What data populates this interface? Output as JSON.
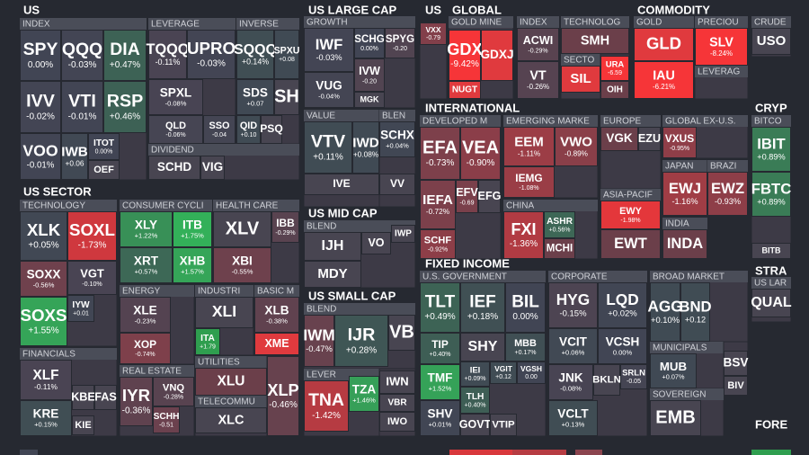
{
  "sections": [
    {
      "title": "US",
      "groups": [
        {
          "title": "INDEX",
          "cells": [
            {
              "label": "SPY",
              "change": "0.00%"
            },
            {
              "label": "QQQ",
              "change": "-0.03%"
            },
            {
              "label": "DIA",
              "change": "+0.47%"
            },
            {
              "label": "IVV",
              "change": "-0.02%"
            },
            {
              "label": "VTI",
              "change": "-0.01%"
            },
            {
              "label": "RSP",
              "change": "+0.46%"
            },
            {
              "label": "VOO",
              "change": "-0.01%"
            },
            {
              "label": "IWB",
              "change": "+0.06"
            },
            {
              "label": "ITOT",
              "change": "0.00%"
            },
            {
              "label": "OEF"
            }
          ]
        },
        {
          "title": "LEVERAGE",
          "cells": [
            {
              "label": "TQQQ",
              "change": "-0.11%"
            },
            {
              "label": "UPRO",
              "change": "-0.03%"
            },
            {
              "label": "SPXL",
              "change": "-0.08%"
            },
            {
              "label": "QLD",
              "change": "-0.06%"
            },
            {
              "label": "SSO",
              "change": "-0.04"
            }
          ]
        },
        {
          "title": "INVERSE",
          "cells": [
            {
              "label": "SQQQ",
              "change": "+0.14%"
            },
            {
              "label": "SPXU",
              "change": "+0.08"
            },
            {
              "label": "SDS",
              "change": "+0.07"
            },
            {
              "label": "SH"
            },
            {
              "label": "QID",
              "change": "+0.10"
            },
            {
              "label": "PSQ"
            }
          ]
        },
        {
          "title": "DIVIDEND",
          "cells": [
            {
              "label": "SCHD"
            },
            {
              "label": "VIG"
            }
          ]
        }
      ]
    },
    {
      "title": "US SECTOR",
      "groups": [
        {
          "title": "TECHNOLOGY",
          "cells": [
            {
              "label": "XLK",
              "change": "+0.05%"
            },
            {
              "label": "SOXL",
              "change": "-1.73%"
            },
            {
              "label": "SOXX",
              "change": "-0.56%"
            },
            {
              "label": "VGT",
              "change": "-0.10%"
            },
            {
              "label": "SOXS",
              "change": "+1.55%"
            },
            {
              "label": "IYW",
              "change": "+0.01"
            }
          ]
        },
        {
          "title": "FINANCIALS",
          "cells": [
            {
              "label": "XLF",
              "change": "-0.11%"
            },
            {
              "label": "KRE",
              "change": "+0.15%"
            },
            {
              "label": "KBE"
            },
            {
              "label": "FAS"
            },
            {
              "label": "KIE"
            }
          ]
        },
        {
          "title": "CONSUMER CYCLI",
          "cells": [
            {
              "label": "XLY",
              "change": "+1.22%"
            },
            {
              "label": "ITB",
              "change": "+1.75%"
            },
            {
              "label": "XRT",
              "change": "+0.57%"
            },
            {
              "label": "XHB",
              "change": "+1.57%"
            }
          ]
        },
        {
          "title": "HEALTH CARE",
          "cells": [
            {
              "label": "XLV"
            },
            {
              "label": "IBB",
              "change": "-0.29%"
            },
            {
              "label": "XBI",
              "change": "-0.55%"
            }
          ]
        },
        {
          "title": "ENERGY",
          "cells": [
            {
              "label": "XLE",
              "change": "-0.23%"
            },
            {
              "label": "XOP",
              "change": "-0.74%"
            }
          ]
        },
        {
          "title": "INDUSTRI",
          "cells": [
            {
              "label": "XLI"
            },
            {
              "label": "ITA",
              "change": "+1.79"
            }
          ]
        },
        {
          "title": "BASIC M",
          "cells": [
            {
              "label": "XLB",
              "change": "-0.38%"
            },
            {
              "label": "XME"
            }
          ]
        },
        {
          "title": "REAL ESTATE",
          "cells": [
            {
              "label": "IYR",
              "change": "-0.36%"
            },
            {
              "label": "VNQ",
              "change": "-0.28%"
            },
            {
              "label": "SCHH",
              "change": "-0.51"
            }
          ]
        },
        {
          "title": "UTILITIES",
          "cells": [
            {
              "label": "XLU"
            }
          ]
        },
        {
          "title": "TELECOMMU",
          "cells": [
            {
              "label": "XLC"
            }
          ]
        },
        {
          "cells": [
            {
              "label": "XLP",
              "change": "-0.46%"
            }
          ]
        }
      ]
    },
    {
      "title": "US LARGE CAP",
      "groups": [
        {
          "title": "GROWTH",
          "cells": [
            {
              "label": "IWF",
              "change": "-0.03%"
            },
            {
              "label": "SCHG",
              "change": "0.00%"
            },
            {
              "label": "SPYG",
              "change": "-0.20"
            },
            {
              "label": "VUG",
              "change": "-0.04%"
            },
            {
              "label": "IVW",
              "change": "-0.20"
            },
            {
              "label": "MGK"
            }
          ]
        },
        {
          "title": "VALUE",
          "cells": [
            {
              "label": "VTV",
              "change": "+0.11%"
            },
            {
              "label": "IWD",
              "change": "+0.08%"
            },
            {
              "label": "IVE"
            }
          ]
        },
        {
          "title": "BLEN",
          "cells": [
            {
              "label": "SCHX",
              "change": "+0.04%"
            },
            {
              "label": "VV"
            }
          ]
        }
      ]
    },
    {
      "title": "US MID CAP",
      "groups": [
        {
          "title": "BLEND",
          "cells": [
            {
              "label": "IJH"
            },
            {
              "label": "VO"
            },
            {
              "label": "IWP"
            },
            {
              "label": "MDY"
            }
          ]
        }
      ]
    },
    {
      "title": "US SMALL CAP",
      "groups": [
        {
          "title": "BLEND",
          "cells": [
            {
              "label": "IWM",
              "change": "-0.47%"
            },
            {
              "label": "IJR",
              "change": "+0.28%"
            },
            {
              "label": "VB"
            }
          ]
        },
        {
          "title": "LEVER",
          "cells": [
            {
              "label": "TNA",
              "change": "-1.42%"
            },
            {
              "label": "TZA",
              "change": "+1.46%"
            }
          ]
        },
        {
          "cells": [
            {
              "label": "IWN"
            },
            {
              "label": "VBR"
            },
            {
              "label": "IWO"
            }
          ]
        }
      ]
    },
    {
      "title": "US",
      "groups": [
        {
          "cells": [
            {
              "label": "VXX",
              "change": "-0.79"
            }
          ]
        }
      ]
    },
    {
      "title": "GLOBAL",
      "groups": [
        {
          "title": "GOLD MINE",
          "cells": [
            {
              "label": "GDX",
              "change": "-9.42%"
            },
            {
              "label": "GDXJ"
            },
            {
              "label": "NUGT"
            }
          ]
        },
        {
          "title": "INDEX",
          "cells": [
            {
              "label": "ACWI",
              "change": "-0.29%"
            },
            {
              "label": "VT",
              "change": "-0.26%"
            }
          ]
        },
        {
          "title": "TECHNOLOG",
          "cells": [
            {
              "label": "SMH"
            }
          ]
        },
        {
          "title": "SECTO",
          "cells": [
            {
              "label": "SIL"
            }
          ]
        },
        {
          "cells": [
            {
              "label": "URA",
              "change": "-6.59"
            },
            {
              "label": "OIH"
            }
          ]
        }
      ]
    },
    {
      "title": "COMMODITY",
      "groups": [
        {
          "title": "GOLD",
          "cells": [
            {
              "label": "GLD"
            },
            {
              "label": "IAU",
              "change": "-6.21%"
            }
          ]
        },
        {
          "title": "PRECIOU",
          "cells": [
            {
              "label": "SLV",
              "change": "-8.24%"
            }
          ]
        },
        {
          "title": "LEVERAG",
          "cells": []
        },
        {
          "title": "CRUDE",
          "cells": [
            {
              "label": "USO"
            }
          ]
        }
      ]
    },
    {
      "title": "CRYP",
      "groups": [
        {
          "title": "BITCO",
          "cells": [
            {
              "label": "IBIT",
              "change": "+0.89%"
            },
            {
              "label": "FBTC",
              "change": "+0.89%"
            },
            {
              "label": "BITB"
            }
          ]
        }
      ]
    },
    {
      "title": "INTERNATIONAL",
      "groups": [
        {
          "title": "DEVELOPED M",
          "cells": [
            {
              "label": "EFA",
              "change": "-0.73%"
            },
            {
              "label": "VEA",
              "change": "-0.90%"
            },
            {
              "label": "IEFA",
              "change": "-0.72%"
            },
            {
              "label": "EFV",
              "change": "-0.69"
            },
            {
              "label": "EFG"
            },
            {
              "label": "SCHF",
              "change": "-0.92%"
            }
          ]
        },
        {
          "title": "EMERGING MARKE",
          "cells": [
            {
              "label": "EEM",
              "change": "-1.11%"
            },
            {
              "label": "VWO",
              "change": "-0.89%"
            },
            {
              "label": "IEMG",
              "change": "-1.08%"
            }
          ]
        },
        {
          "title": "CHINA",
          "cells": [
            {
              "label": "FXI",
              "change": "-1.36%"
            },
            {
              "label": "ASHR",
              "change": "+0.56%"
            },
            {
              "label": "MCHI"
            }
          ]
        },
        {
          "title": "EUROPE",
          "cells": [
            {
              "label": "VGK"
            },
            {
              "label": "EZU"
            }
          ]
        },
        {
          "title": "ASIA-PACIF",
          "cells": [
            {
              "label": "EWY",
              "change": "-1.98%"
            },
            {
              "label": "EWT"
            }
          ]
        },
        {
          "title": "GLOBAL EX-U.S.",
          "cells": [
            {
              "label": "VXUS",
              "change": "-0.95%"
            }
          ]
        },
        {
          "title": "JAPAN",
          "cells": [
            {
              "label": "EWJ",
              "change": "-1.16%"
            }
          ]
        },
        {
          "title": "BRAZI",
          "cells": [
            {
              "label": "EWZ",
              "change": "-0.93%"
            }
          ]
        },
        {
          "title": "INDIA",
          "cells": [
            {
              "label": "INDA"
            }
          ]
        }
      ]
    },
    {
      "title": "FIXED INCOME",
      "groups": [
        {
          "title": "U.S. GOVERNMENT",
          "cells": [
            {
              "label": "TLT",
              "change": "+0.49%"
            },
            {
              "label": "IEF",
              "change": "+0.18%"
            },
            {
              "label": "BIL",
              "change": "0.00%"
            },
            {
              "label": "TIP",
              "change": "+0.40%"
            },
            {
              "label": "SHY"
            },
            {
              "label": "MBB",
              "change": "+0.17%"
            },
            {
              "label": "TMF",
              "change": "+1.52%"
            },
            {
              "label": "IEI",
              "change": "+0.09%"
            },
            {
              "label": "VGIT",
              "change": "+0.12"
            },
            {
              "label": "VGSH",
              "change": "0.00"
            },
            {
              "label": "SHV",
              "change": "+0.01%"
            },
            {
              "label": "TLH",
              "change": "+0.40%"
            },
            {
              "label": "GOVT"
            },
            {
              "label": "VTIP"
            }
          ]
        },
        {
          "title": "CORPORATE",
          "cells": [
            {
              "label": "HYG",
              "change": "-0.15%"
            },
            {
              "label": "LQD",
              "change": "+0.02%"
            },
            {
              "label": "VCIT",
              "change": "+0.06%"
            },
            {
              "label": "VCSH",
              "change": "0.00%"
            },
            {
              "label": "JNK",
              "change": "-0.08%"
            },
            {
              "label": "BKLN"
            },
            {
              "label": "SRLN",
              "change": "-0.05"
            },
            {
              "label": "VCLT",
              "change": "+0.13%"
            }
          ]
        },
        {
          "title": "BROAD MARKET",
          "cells": [
            {
              "label": "AGG",
              "change": "+0.10%"
            },
            {
              "label": "BND",
              "change": "+0.12"
            }
          ]
        },
        {
          "title": "MUNICIPALS",
          "cells": [
            {
              "label": "MUB",
              "change": "+0.07%"
            }
          ]
        },
        {
          "cells": [
            {
              "label": "BSV"
            },
            {
              "label": "BIV"
            }
          ]
        },
        {
          "title": "SOVEREIGN",
          "cells": [
            {
              "label": "EMB"
            }
          ]
        }
      ]
    },
    {
      "title": "STRA",
      "groups": [
        {
          "title": "US LAR",
          "cells": [
            {
              "label": "QUAL"
            }
          ]
        }
      ]
    },
    {
      "title": "FORE",
      "groups": []
    }
  ]
}
